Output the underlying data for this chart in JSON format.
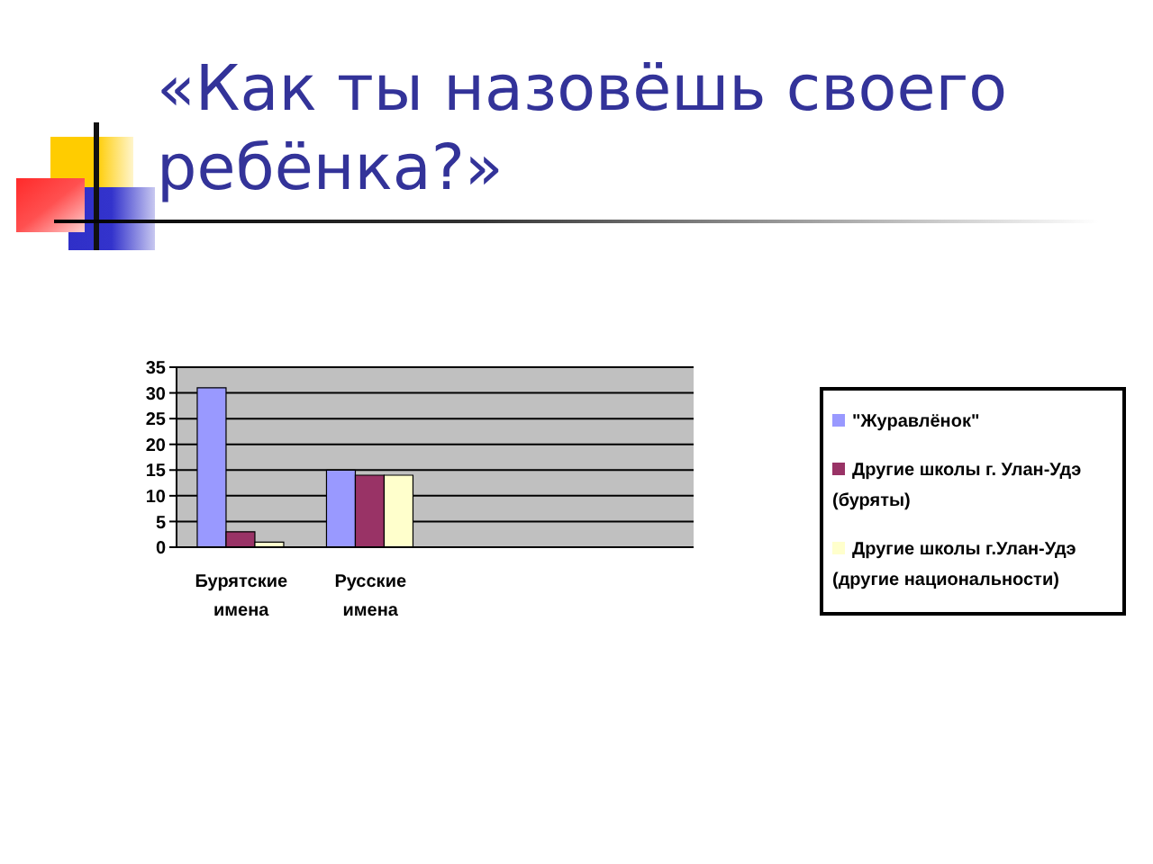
{
  "chart_data": {
    "type": "bar",
    "title": "«Как ты назовёшь своего ребёнка?»",
    "categories": [
      "Бурятские имена",
      "Русские имена",
      null,
      null
    ],
    "series": [
      {
        "name": "\"Журавлёнок\"",
        "color": "#9999ff",
        "values": [
          31,
          15,
          null,
          null
        ]
      },
      {
        "name": "Другие школы г. Улан-Удэ (буряты)",
        "color": "#993366",
        "values": [
          3,
          14,
          null,
          null
        ]
      },
      {
        "name": "Другие школы г.Улан-Удэ (другие национальности)",
        "color": "#ffffcc",
        "values": [
          1,
          14,
          null,
          null
        ]
      }
    ],
    "ylim": [
      0,
      35
    ],
    "yticks": [
      0,
      5,
      10,
      15,
      20,
      25,
      30,
      35
    ],
    "grid": "y",
    "legend": "right"
  }
}
